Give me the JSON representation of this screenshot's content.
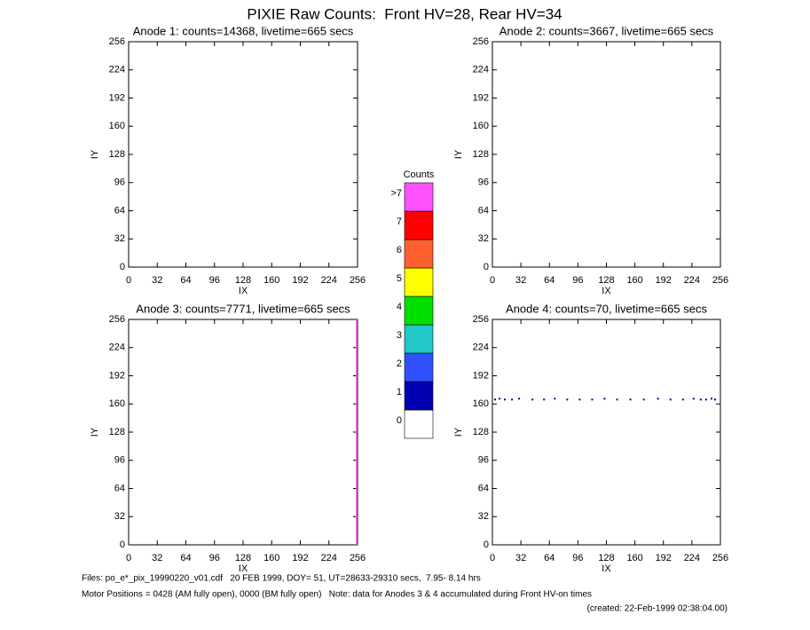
{
  "title": "PIXIE Raw Counts:  Front HV=28, Rear HV=34",
  "chart_data": [
    {
      "type": "scatter",
      "title": "Anode 1: counts=14368, livetime=665 secs",
      "x_label": "IX",
      "y_label": "IY",
      "xlim": [
        0,
        256
      ],
      "ylim": [
        0,
        256
      ],
      "xticks": [
        0,
        32,
        64,
        96,
        128,
        160,
        192,
        224,
        256
      ],
      "yticks": [
        0,
        32,
        64,
        96,
        128,
        160,
        192,
        224,
        256
      ]
    },
    {
      "type": "scatter",
      "title": "Anode 2: counts=3667, livetime=665 secs",
      "x_label": "IX",
      "y_label": "IY",
      "xlim": [
        0,
        256
      ],
      "ylim": [
        0,
        256
      ],
      "xticks": [
        0,
        32,
        64,
        96,
        128,
        160,
        192,
        224,
        256
      ],
      "yticks": [
        0,
        32,
        64,
        96,
        128,
        160,
        192,
        224,
        256
      ]
    },
    {
      "type": "line",
      "title": "Anode 3: counts=7771, livetime=665 secs",
      "x_label": "IX",
      "y_label": "IY",
      "xlim": [
        0,
        256
      ],
      "ylim": [
        0,
        256
      ],
      "xticks": [
        0,
        32,
        64,
        96,
        128,
        160,
        192,
        224,
        256
      ],
      "yticks": [
        0,
        32,
        64,
        96,
        128,
        160,
        192,
        224,
        256
      ],
      "series": [
        {
          "color": "#ff50ff",
          "x": [
            255,
            255
          ],
          "y": [
            0,
            256
          ]
        }
      ]
    },
    {
      "type": "scatter",
      "title": "Anode 4: counts=70, livetime=665 secs",
      "x_label": "IX",
      "y_label": "IY",
      "xlim": [
        0,
        256
      ],
      "ylim": [
        0,
        256
      ],
      "xticks": [
        0,
        32,
        64,
        96,
        128,
        160,
        192,
        224,
        256
      ],
      "yticks": [
        0,
        32,
        64,
        96,
        128,
        160,
        192,
        224,
        256
      ],
      "series": [
        {
          "color": "#0000b0",
          "x": [
            3,
            8,
            14,
            22,
            30,
            45,
            58,
            70,
            84,
            98,
            112,
            126,
            140,
            155,
            170,
            186,
            200,
            214,
            226,
            234,
            240,
            246,
            250
          ],
          "y": [
            165,
            166,
            165,
            165,
            166,
            165,
            165,
            166,
            165,
            165,
            165,
            166,
            165,
            165,
            165,
            166,
            165,
            165,
            166,
            165,
            165,
            166,
            165
          ]
        }
      ]
    },
    {
      "type": "colorbar",
      "title": "Counts",
      "categories": [
        "0",
        "1",
        "2",
        "3",
        "4",
        "5",
        "6",
        "7",
        ">7"
      ],
      "colors": [
        "#ffffff",
        "#0000b0",
        "#3050ff",
        "#20c8c8",
        "#00e000",
        "#ffff00",
        "#ff6030",
        "#ff0000",
        "#ff50ff"
      ]
    }
  ],
  "footer": [
    "Files: po_e*_pix_19990220_v01.cdf   20 FEB 1999, DOY= 51, UT=28633-29310 secs,  7.95- 8.14 hrs",
    "Motor Positions = 0428 (AM fully open), 0000 (BM fully open)   Note: data for Anodes 3 & 4 accumulated during Front HV-on times",
    "(created: 22-Feb-1999 02:38:04.00)"
  ]
}
